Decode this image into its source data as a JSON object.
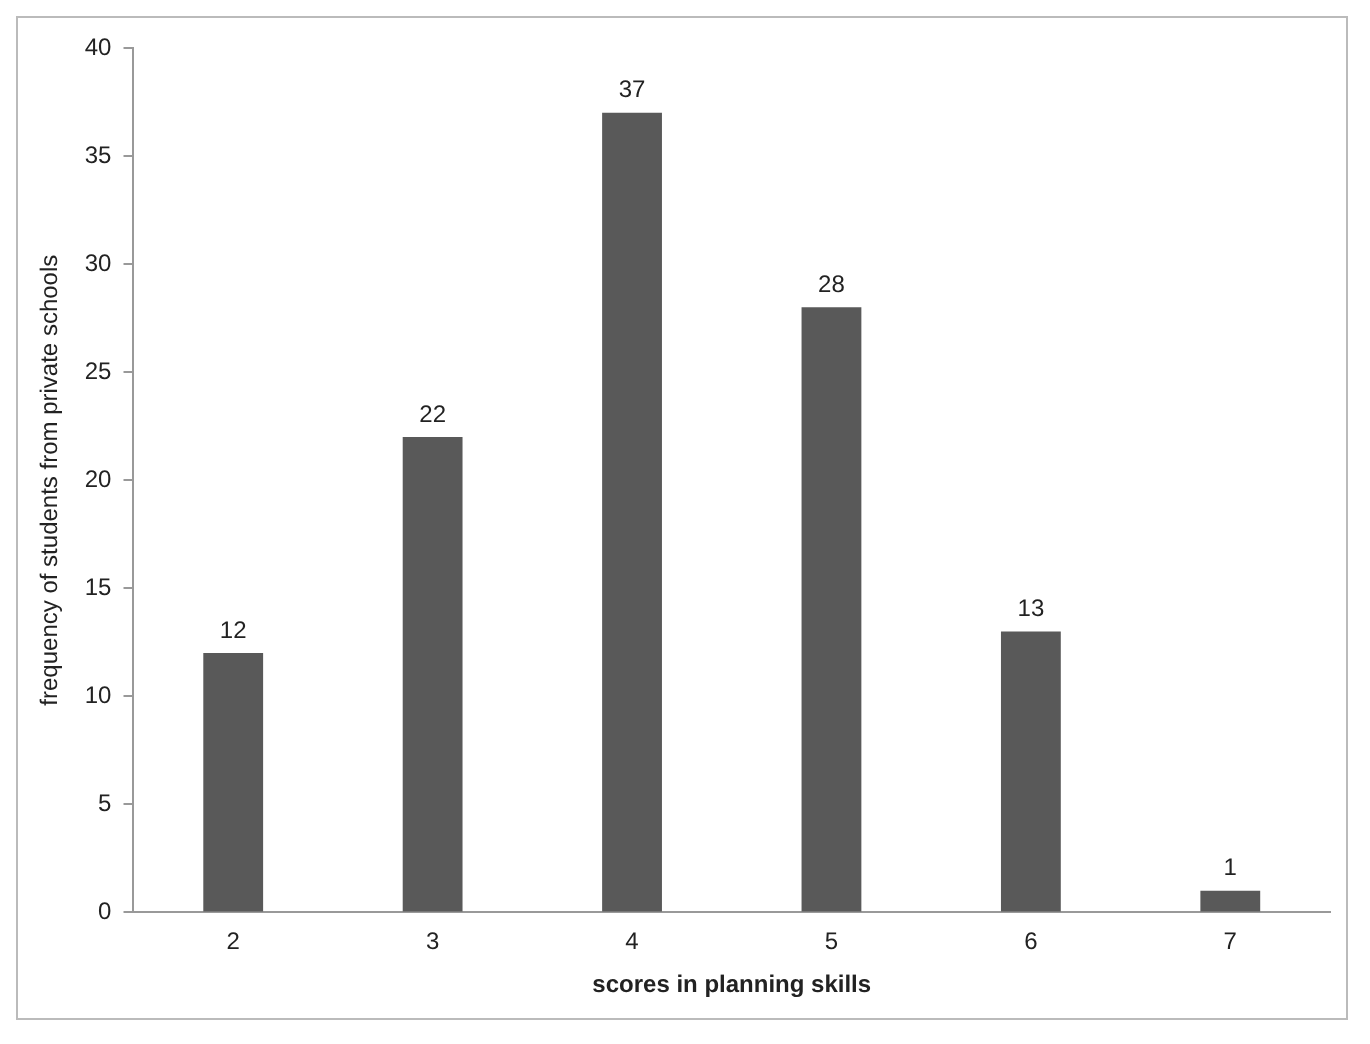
{
  "chart_data": {
    "type": "bar",
    "xlabel": "scores in planning skills",
    "ylabel": "frequency of students from private schools",
    "categories": [
      "2",
      "3",
      "4",
      "5",
      "6",
      "7"
    ],
    "values": [
      12,
      22,
      37,
      28,
      13,
      1
    ],
    "color": "#595959",
    "ylim": [
      0,
      40
    ],
    "yticks": [
      0,
      5,
      10,
      15,
      20,
      25,
      30,
      35,
      40
    ],
    "grid": false,
    "data_labels": true
  }
}
